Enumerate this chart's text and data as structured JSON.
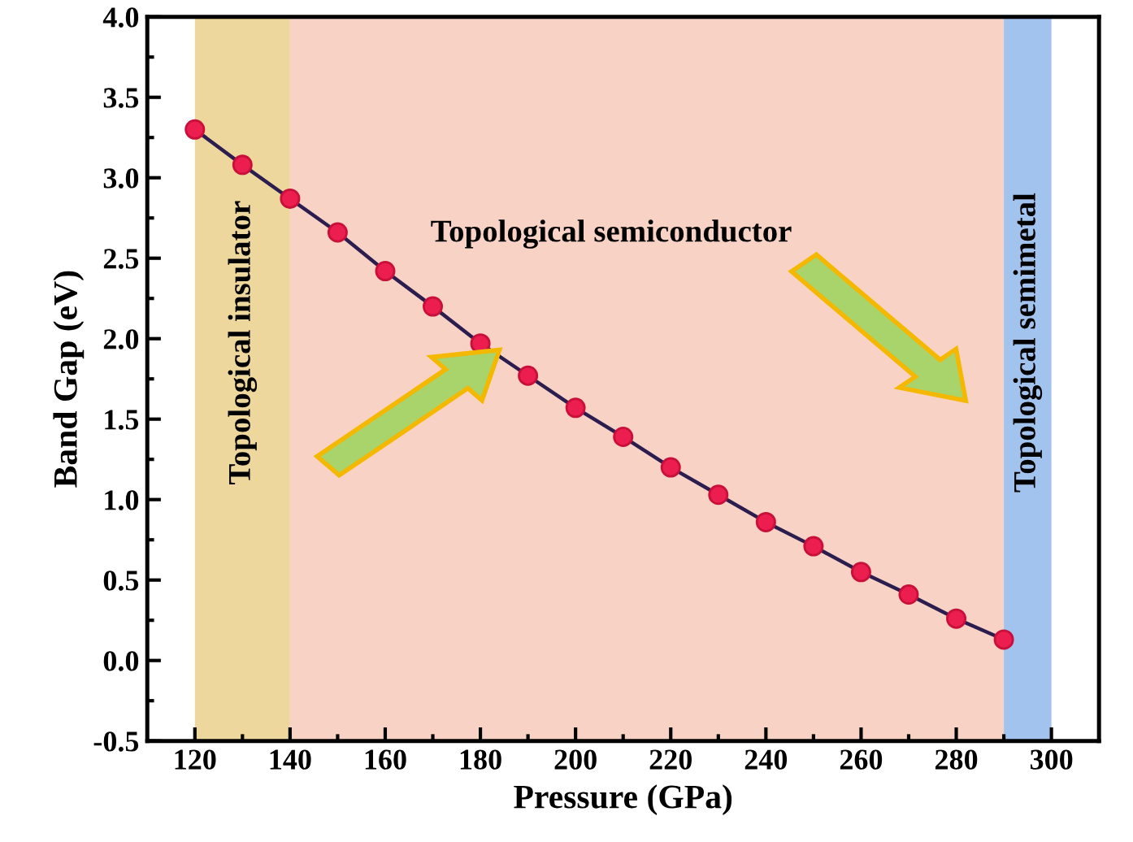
{
  "chart_data": {
    "type": "line",
    "xlabel": "Pressure (GPa)",
    "ylabel": "Band Gap (eV)",
    "x": [
      120,
      130,
      140,
      150,
      160,
      170,
      180,
      190,
      200,
      210,
      220,
      230,
      240,
      250,
      260,
      270,
      280,
      290
    ],
    "series": [
      {
        "color": "#2b1d4f",
        "values": [
          3.3,
          3.08,
          2.87,
          2.66,
          2.42,
          2.2,
          1.97,
          1.77,
          1.57,
          1.39,
          1.2,
          1.03,
          0.86,
          0.71,
          0.55,
          0.41,
          0.26,
          0.13
        ]
      }
    ],
    "marker": "circle",
    "line_style": "solid",
    "grid": false,
    "legend": false,
    "xlim": [
      110,
      310
    ],
    "xticks": [
      120,
      140,
      160,
      180,
      200,
      220,
      240,
      260,
      280,
      300
    ],
    "ylim": [
      -0.5,
      4.0
    ],
    "yticks": [
      {
        "value": -0.5,
        "label": "-0.5"
      },
      {
        "value": 0,
        "label": "0.0"
      },
      {
        "value": 0.5,
        "label": "0.5"
      },
      {
        "value": 1,
        "label": "1.0"
      },
      {
        "value": 1.5,
        "label": "1.5"
      },
      {
        "value": 2,
        "label": "2.0"
      },
      {
        "value": 2.5,
        "label": "2.5"
      },
      {
        "value": 3,
        "label": "3.0"
      },
      {
        "value": 3.5,
        "label": "3.5"
      },
      {
        "value": 4,
        "label": "4.0"
      }
    ],
    "bands": [
      {
        "axis": "x",
        "from": 120,
        "to": 140,
        "label": "Topological insulator",
        "color": "#eed79c"
      },
      {
        "axis": "x",
        "from": 140,
        "to": 290,
        "label": "Topological semiconductor",
        "color": "#f8d2c4"
      },
      {
        "axis": "x",
        "from": 290,
        "to": 300,
        "label": "Topological semimetal",
        "color": "#a3c3ef"
      }
    ]
  }
}
